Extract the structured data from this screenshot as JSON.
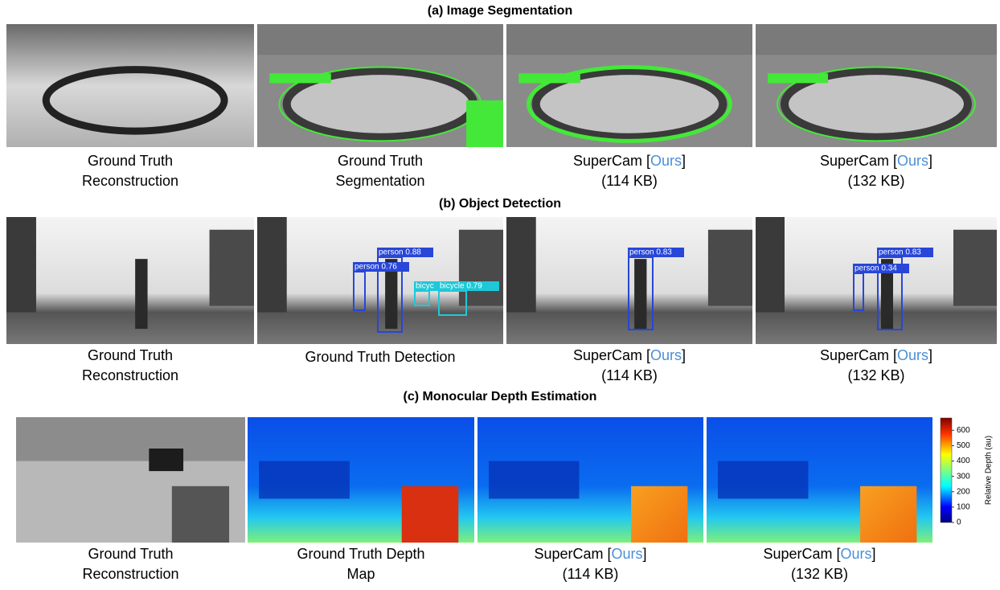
{
  "sections": [
    {
      "title": "(a) Image Segmentation",
      "panels": [
        {
          "caption": [
            [
              "Ground Truth"
            ],
            [
              "Reconstruction"
            ]
          ]
        },
        {
          "caption": [
            [
              "Ground Truth"
            ],
            [
              "Segmentation"
            ]
          ]
        },
        {
          "caption": [
            [
              "SuperCam [",
              {
                "text": "Ours",
                "color": "#4a8fd8"
              },
              "]"
            ],
            [
              "(114 KB)"
            ]
          ]
        },
        {
          "caption": [
            [
              "SuperCam [",
              {
                "text": "Ours",
                "color": "#4a8fd8"
              },
              "]"
            ],
            [
              "(132 KB)"
            ]
          ]
        }
      ]
    },
    {
      "title": "(b) Object Detection",
      "panels": [
        {
          "caption": [
            [
              "Ground Truth"
            ],
            [
              "Reconstruction"
            ]
          ]
        },
        {
          "caption": [
            [
              "Ground Truth Detection"
            ]
          ],
          "detections": [
            {
              "label": "person 0.88",
              "color": "#2846d8"
            },
            {
              "label": "person 0.76",
              "color": "#2846d8"
            },
            {
              "label": "bicyc",
              "color": "#1ec8d8"
            },
            {
              "label": "bicycle 0.79",
              "color": "#1ec8d8"
            }
          ]
        },
        {
          "caption": [
            [
              "SuperCam [",
              {
                "text": "Ours",
                "color": "#4a8fd8"
              },
              "]"
            ],
            [
              "(114 KB)"
            ]
          ],
          "detections": [
            {
              "label": "person 0.83",
              "color": "#2846d8"
            }
          ]
        },
        {
          "caption": [
            [
              "SuperCam [",
              {
                "text": "Ours",
                "color": "#4a8fd8"
              },
              "]"
            ],
            [
              "(132 KB)"
            ]
          ],
          "detections": [
            {
              "label": "person 0.83",
              "color": "#2846d8"
            },
            {
              "label": "person 0.34",
              "color": "#2846d8"
            }
          ]
        }
      ]
    },
    {
      "title": "(c) Monocular Depth Estimation",
      "panels": [
        {
          "caption": [
            [
              "Ground Truth"
            ],
            [
              "Reconstruction"
            ]
          ]
        },
        {
          "caption": [
            [
              "Ground Truth Depth"
            ],
            [
              "Map"
            ]
          ]
        },
        {
          "caption": [
            [
              "SuperCam [",
              {
                "text": "Ours",
                "color": "#4a8fd8"
              },
              "]"
            ],
            [
              "(114 KB)"
            ]
          ]
        },
        {
          "caption": [
            [
              "SuperCam [",
              {
                "text": "Ours",
                "color": "#4a8fd8"
              },
              "]"
            ],
            [
              "(132 KB)"
            ]
          ]
        }
      ]
    }
  ],
  "colorbar": {
    "label": "Relative Depth (au)",
    "lim": [
      0,
      680
    ],
    "ticks": [
      0,
      100,
      200,
      300,
      400,
      500,
      600
    ]
  }
}
